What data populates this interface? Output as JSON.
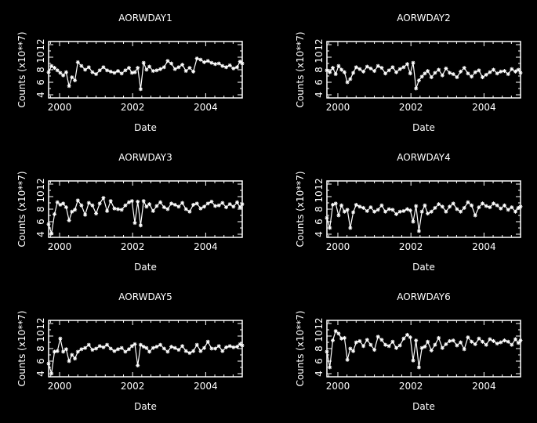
{
  "chart_data": [
    {
      "type": "line",
      "title": "AORWDAY1",
      "xlabel": "Date",
      "ylabel": "Counts (x10**7)",
      "xlim": [
        1999.7,
        2005.0
      ],
      "ylim": [
        3.5,
        12.5
      ],
      "xticks": [
        "2000",
        "2002",
        "2004"
      ],
      "yticks": [
        "4",
        "6",
        "8",
        "10",
        "12"
      ],
      "grid": false,
      "series": [
        {
          "x": [
            1999.7,
            1999.78,
            1999.86,
            1999.94,
            2000.02,
            2000.1,
            2000.18,
            2000.26,
            2000.34,
            2000.42,
            2000.5,
            2000.6,
            2000.7,
            2000.8,
            2000.9,
            2001.0,
            2001.1,
            2001.2,
            2001.3,
            2001.4,
            2001.5,
            2001.6,
            2001.7,
            2001.8,
            2001.9,
            2001.98,
            2002.06,
            2002.14,
            2002.22,
            2002.3,
            2002.38,
            2002.46,
            2002.56,
            2002.66,
            2002.76,
            2002.86,
            2002.96,
            2003.06,
            2003.16,
            2003.26,
            2003.36,
            2003.46,
            2003.56,
            2003.66,
            2003.76,
            2003.86,
            2003.96,
            2004.06,
            2004.16,
            2004.26,
            2004.36,
            2004.46,
            2004.56,
            2004.66,
            2004.76,
            2004.86,
            2004.94,
            2005.0
          ],
          "y": [
            7.6,
            8.6,
            8.3,
            7.9,
            7.5,
            7.1,
            7.6,
            5.4,
            6.8,
            6.3,
            9.2,
            8.6,
            8.0,
            8.4,
            7.6,
            7.3,
            7.9,
            8.4,
            7.9,
            7.7,
            7.5,
            7.8,
            7.4,
            7.9,
            8.3,
            7.5,
            7.6,
            8.3,
            4.9,
            9.1,
            8.0,
            8.5,
            7.8,
            7.9,
            8.1,
            8.4,
            9.4,
            9.0,
            8.1,
            8.4,
            8.8,
            7.8,
            8.3,
            7.7,
            9.8,
            9.6,
            9.2,
            9.4,
            9.1,
            8.9,
            9.0,
            8.6,
            8.4,
            8.7,
            8.2,
            8.4,
            9.3,
            9.0
          ]
        }
      ]
    },
    {
      "type": "line",
      "title": "AORWDAY2",
      "xlabel": "Date",
      "ylabel": "Counts (x10**7)",
      "xlim": [
        1999.7,
        2005.0
      ],
      "ylim": [
        3.5,
        12.5
      ],
      "xticks": [
        "2000",
        "2002",
        "2004"
      ],
      "yticks": [
        "4",
        "6",
        "8",
        "10",
        "12"
      ],
      "grid": false,
      "series": [
        {
          "x": [
            1999.7,
            1999.78,
            1999.86,
            1999.94,
            2000.02,
            2000.1,
            2000.18,
            2000.26,
            2000.34,
            2000.42,
            2000.5,
            2000.6,
            2000.7,
            2000.8,
            2000.9,
            2001.0,
            2001.1,
            2001.2,
            2001.3,
            2001.4,
            2001.5,
            2001.6,
            2001.7,
            2001.8,
            2001.9,
            2001.98,
            2002.06,
            2002.14,
            2002.22,
            2002.3,
            2002.38,
            2002.46,
            2002.56,
            2002.66,
            2002.76,
            2002.86,
            2002.96,
            2003.06,
            2003.16,
            2003.26,
            2003.36,
            2003.46,
            2003.56,
            2003.66,
            2003.76,
            2003.86,
            2003.96,
            2004.06,
            2004.16,
            2004.26,
            2004.36,
            2004.46,
            2004.56,
            2004.66,
            2004.76,
            2004.86,
            2004.94,
            2005.0
          ],
          "y": [
            7.9,
            7.6,
            8.3,
            7.3,
            8.6,
            8.0,
            7.6,
            6.0,
            6.5,
            7.5,
            8.4,
            8.1,
            7.7,
            8.5,
            8.2,
            7.8,
            8.6,
            8.3,
            7.4,
            7.9,
            8.4,
            7.6,
            8.1,
            8.4,
            8.9,
            7.4,
            9.1,
            5.0,
            6.3,
            6.9,
            7.4,
            7.8,
            6.8,
            7.5,
            8.0,
            7.1,
            8.2,
            7.5,
            7.3,
            6.8,
            7.7,
            8.3,
            7.4,
            6.9,
            7.6,
            7.9,
            6.8,
            7.2,
            7.6,
            8.0,
            7.4,
            7.7,
            7.8,
            7.3,
            8.1,
            7.7,
            8.0,
            7.5
          ]
        }
      ]
    },
    {
      "type": "line",
      "title": "AORWDAY3",
      "xlabel": "Date",
      "ylabel": "Counts (x10**7)",
      "xlim": [
        1999.7,
        2005.0
      ],
      "ylim": [
        3.5,
        12.5
      ],
      "xticks": [
        "2000",
        "2002",
        "2004"
      ],
      "yticks": [
        "4",
        "6",
        "8",
        "10",
        "12"
      ],
      "grid": false,
      "series": [
        {
          "x": [
            1999.7,
            1999.78,
            1999.86,
            1999.94,
            2000.02,
            2000.1,
            2000.18,
            2000.26,
            2000.34,
            2000.42,
            2000.5,
            2000.6,
            2000.7,
            2000.8,
            2000.9,
            2001.0,
            2001.1,
            2001.2,
            2001.3,
            2001.4,
            2001.5,
            2001.6,
            2001.7,
            2001.8,
            2001.9,
            2001.98,
            2002.06,
            2002.14,
            2002.22,
            2002.3,
            2002.38,
            2002.46,
            2002.56,
            2002.66,
            2002.76,
            2002.86,
            2002.96,
            2003.06,
            2003.16,
            2003.26,
            2003.36,
            2003.46,
            2003.56,
            2003.66,
            2003.76,
            2003.86,
            2003.96,
            2004.06,
            2004.16,
            2004.26,
            2004.36,
            2004.46,
            2004.56,
            2004.66,
            2004.76,
            2004.86,
            2004.94,
            2005.0
          ],
          "y": [
            5.6,
            4.1,
            7.2,
            9.1,
            8.7,
            8.9,
            8.3,
            6.2,
            7.6,
            7.9,
            9.4,
            8.6,
            7.1,
            9.0,
            8.6,
            7.3,
            8.9,
            9.8,
            7.7,
            9.3,
            8.1,
            8.0,
            7.9,
            8.6,
            9.1,
            9.3,
            5.8,
            9.2,
            5.4,
            9.3,
            8.4,
            8.8,
            7.7,
            8.5,
            9.1,
            8.3,
            8.0,
            8.9,
            8.7,
            8.4,
            9.0,
            8.0,
            7.6,
            8.7,
            8.9,
            8.1,
            8.4,
            8.9,
            9.2,
            8.5,
            8.6,
            9.0,
            8.3,
            8.8,
            8.4,
            9.1,
            8.3,
            8.8
          ]
        }
      ]
    },
    {
      "type": "line",
      "title": "AORWDAY4",
      "xlabel": "Date",
      "ylabel": "Counts (x10**7)",
      "xlim": [
        1999.7,
        2005.0
      ],
      "ylim": [
        3.5,
        12.5
      ],
      "xticks": [
        "2000",
        "2002",
        "2004"
      ],
      "yticks": [
        "4",
        "6",
        "8",
        "10",
        "12"
      ],
      "grid": false,
      "series": [
        {
          "x": [
            1999.7,
            1999.78,
            1999.86,
            1999.94,
            2000.02,
            2000.1,
            2000.18,
            2000.26,
            2000.34,
            2000.42,
            2000.5,
            2000.6,
            2000.7,
            2000.8,
            2000.9,
            2001.0,
            2001.1,
            2001.2,
            2001.3,
            2001.4,
            2001.5,
            2001.6,
            2001.7,
            2001.8,
            2001.9,
            2001.98,
            2002.06,
            2002.14,
            2002.22,
            2002.3,
            2002.38,
            2002.46,
            2002.56,
            2002.66,
            2002.76,
            2002.86,
            2002.96,
            2003.06,
            2003.16,
            2003.26,
            2003.36,
            2003.46,
            2003.56,
            2003.66,
            2003.76,
            2003.86,
            2003.96,
            2004.06,
            2004.16,
            2004.26,
            2004.36,
            2004.46,
            2004.56,
            2004.66,
            2004.76,
            2004.86,
            2004.94,
            2005.0
          ],
          "y": [
            6.6,
            5.0,
            8.7,
            8.9,
            7.0,
            8.6,
            7.6,
            7.9,
            5.0,
            7.5,
            8.7,
            8.4,
            8.2,
            7.7,
            8.3,
            7.6,
            7.9,
            8.6,
            7.6,
            8.0,
            7.9,
            7.2,
            7.6,
            7.7,
            8.0,
            7.8,
            6.0,
            8.5,
            4.5,
            7.6,
            8.6,
            7.3,
            7.6,
            8.2,
            8.8,
            8.4,
            7.6,
            8.4,
            8.9,
            8.0,
            7.6,
            8.2,
            9.1,
            8.6,
            7.0,
            8.3,
            8.9,
            8.5,
            8.3,
            8.9,
            8.6,
            8.1,
            8.6,
            7.9,
            8.3,
            7.6,
            8.2,
            8.4
          ]
        }
      ]
    },
    {
      "type": "line",
      "title": "AORWDAY5",
      "xlabel": "Date",
      "ylabel": "Counts (x10**7)",
      "xlim": [
        1999.7,
        2005.0
      ],
      "ylim": [
        3.5,
        12.5
      ],
      "xticks": [
        "2000",
        "2002",
        "2004"
      ],
      "yticks": [
        "4",
        "6",
        "8",
        "10",
        "12"
      ],
      "grid": false,
      "series": [
        {
          "x": [
            1999.7,
            1999.78,
            1999.86,
            1999.94,
            2000.02,
            2000.1,
            2000.18,
            2000.26,
            2000.34,
            2000.42,
            2000.5,
            2000.6,
            2000.7,
            2000.8,
            2000.9,
            2001.0,
            2001.1,
            2001.2,
            2001.3,
            2001.4,
            2001.5,
            2001.6,
            2001.7,
            2001.8,
            2001.9,
            2001.98,
            2002.06,
            2002.14,
            2002.22,
            2002.3,
            2002.38,
            2002.46,
            2002.56,
            2002.66,
            2002.76,
            2002.86,
            2002.96,
            2003.06,
            2003.16,
            2003.26,
            2003.36,
            2003.46,
            2003.56,
            2003.66,
            2003.76,
            2003.86,
            2003.96,
            2004.06,
            2004.16,
            2004.26,
            2004.36,
            2004.46,
            2004.56,
            2004.66,
            2004.76,
            2004.86,
            2004.94,
            2005.0
          ],
          "y": [
            5.6,
            4.0,
            7.5,
            7.6,
            9.6,
            7.5,
            7.9,
            6.0,
            7.0,
            6.4,
            7.5,
            7.9,
            8.1,
            8.6,
            7.8,
            8.0,
            8.4,
            8.2,
            8.6,
            8.0,
            7.6,
            7.9,
            8.1,
            7.5,
            7.9,
            8.4,
            8.7,
            5.3,
            8.6,
            8.3,
            8.1,
            7.5,
            8.1,
            8.3,
            8.6,
            8.0,
            7.5,
            8.3,
            8.1,
            7.8,
            8.4,
            7.6,
            7.3,
            7.6,
            8.6,
            7.6,
            8.1,
            9.1,
            8.0,
            8.0,
            8.4,
            7.6,
            8.2,
            8.4,
            8.2,
            8.3,
            8.7,
            8.5
          ]
        }
      ]
    },
    {
      "type": "line",
      "title": "AORWDAY6",
      "xlabel": "Date",
      "ylabel": "Counts (x10**7)",
      "xlim": [
        1999.7,
        2005.0
      ],
      "ylim": [
        3.5,
        12.5
      ],
      "xticks": [
        "2000",
        "2002",
        "2004"
      ],
      "yticks": [
        "4",
        "6",
        "8",
        "10",
        "12"
      ],
      "grid": false,
      "series": [
        {
          "x": [
            1999.7,
            1999.78,
            1999.86,
            1999.94,
            2000.02,
            2000.1,
            2000.18,
            2000.26,
            2000.34,
            2000.42,
            2000.5,
            2000.6,
            2000.7,
            2000.8,
            2000.9,
            2001.0,
            2001.1,
            2001.2,
            2001.3,
            2001.4,
            2001.5,
            2001.6,
            2001.7,
            2001.8,
            2001.9,
            2001.98,
            2002.06,
            2002.14,
            2002.22,
            2002.3,
            2002.38,
            2002.46,
            2002.56,
            2002.66,
            2002.76,
            2002.86,
            2002.96,
            2003.06,
            2003.16,
            2003.26,
            2003.36,
            2003.46,
            2003.56,
            2003.66,
            2003.76,
            2003.86,
            2003.96,
            2004.06,
            2004.16,
            2004.26,
            2004.36,
            2004.46,
            2004.56,
            2004.66,
            2004.76,
            2004.86,
            2004.94,
            2005.0
          ],
          "y": [
            7.5,
            5.0,
            9.3,
            10.8,
            10.4,
            9.6,
            9.7,
            6.2,
            8.0,
            7.6,
            9.0,
            9.2,
            8.4,
            9.4,
            8.6,
            7.8,
            9.9,
            9.4,
            8.6,
            8.4,
            9.1,
            8.1,
            8.5,
            9.6,
            10.2,
            9.8,
            6.1,
            9.3,
            5.0,
            8.1,
            8.3,
            9.1,
            7.7,
            8.6,
            9.7,
            8.1,
            8.7,
            9.2,
            9.3,
            8.5,
            9.0,
            7.9,
            9.8,
            9.1,
            8.7,
            9.6,
            9.1,
            8.6,
            9.5,
            9.2,
            8.8,
            9.0,
            9.3,
            9.1,
            8.6,
            9.5,
            8.9,
            9.3
          ]
        }
      ]
    }
  ]
}
